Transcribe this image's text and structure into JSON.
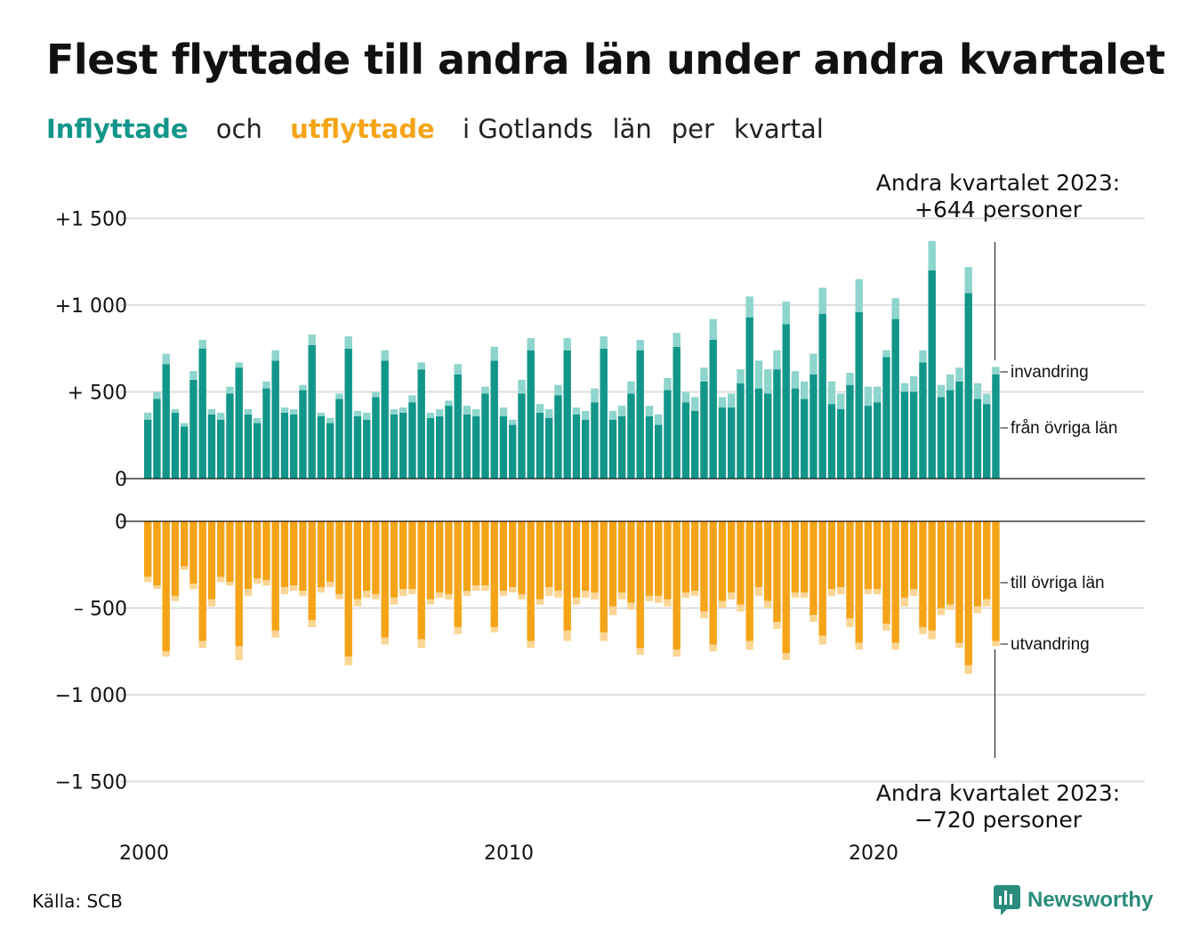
{
  "title": "Flest flyttade till andra län under andra kvartalet",
  "subtitle": {
    "in_word": "Inflyttade",
    "and_word": "och",
    "out_word": "utflyttade",
    "rest": [
      "i Gotlands",
      "län",
      "per",
      "kvartal"
    ]
  },
  "source": "Källa: SCB",
  "brand": "Newsworthy",
  "colors": {
    "in_domestic": "#12968a",
    "in_immigration": "#8dd5cd",
    "out_domestic": "#f5a418",
    "out_emigration": "#fbd593",
    "grid": "#dddddd",
    "axis": "#111111",
    "brand": "#2a8c7c"
  },
  "chart_data": {
    "type": "bar",
    "stacked": true,
    "x_start": "2000 Q1",
    "x_ticks": [
      "2000",
      "2010",
      "2020"
    ],
    "upper": {
      "y_ticks": [
        {
          "value": 0,
          "label": "0"
        },
        {
          "value": 500,
          "label": "+  500"
        },
        {
          "value": 1000,
          "label": "+1 000"
        },
        {
          "value": 1500,
          "label": "+1 500"
        }
      ],
      "ylim": [
        0,
        1500
      ],
      "series": [
        {
          "name": "från övriga län",
          "values": [
            340,
            460,
            660,
            380,
            300,
            570,
            750,
            370,
            340,
            490,
            640,
            370,
            320,
            520,
            680,
            380,
            370,
            510,
            770,
            360,
            320,
            460,
            750,
            360,
            340,
            470,
            680,
            370,
            380,
            440,
            630,
            350,
            360,
            420,
            600,
            370,
            360,
            490,
            680,
            360,
            310,
            490,
            740,
            380,
            350,
            480,
            740,
            370,
            340,
            440,
            750,
            340,
            360,
            490,
            740,
            360,
            310,
            510,
            760,
            440,
            390,
            560,
            800,
            410,
            410,
            550,
            930,
            520,
            490,
            630,
            890,
            520,
            460,
            600,
            950,
            430,
            400,
            540,
            960,
            420,
            440,
            700,
            920,
            500,
            500,
            670,
            1200,
            470,
            510,
            560,
            1070,
            460,
            430,
            600
          ]
        },
        {
          "name": "invandring",
          "values": [
            40,
            40,
            60,
            20,
            20,
            50,
            50,
            30,
            40,
            40,
            30,
            30,
            30,
            40,
            60,
            30,
            30,
            30,
            60,
            20,
            30,
            30,
            70,
            30,
            40,
            30,
            60,
            30,
            30,
            40,
            40,
            30,
            40,
            30,
            60,
            50,
            40,
            40,
            80,
            50,
            30,
            80,
            70,
            50,
            50,
            60,
            70,
            40,
            50,
            80,
            70,
            50,
            60,
            70,
            60,
            60,
            60,
            70,
            80,
            60,
            80,
            80,
            120,
            60,
            80,
            80,
            120,
            160,
            140,
            110,
            130,
            100,
            100,
            120,
            150,
            130,
            90,
            70,
            190,
            110,
            90,
            40,
            120,
            50,
            90,
            70,
            170,
            70,
            90,
            80,
            150,
            90,
            60,
            44
          ]
        }
      ]
    },
    "lower": {
      "y_ticks": [
        {
          "value": 0,
          "label": "0"
        },
        {
          "value": -500,
          "label": "–  500"
        },
        {
          "value": -1000,
          "label": "−1 000"
        },
        {
          "value": -1500,
          "label": "−1 500"
        }
      ],
      "ylim": [
        -1500,
        0
      ],
      "series": [
        {
          "name": "till övriga län",
          "values": [
            -320,
            -370,
            -750,
            -430,
            -260,
            -360,
            -690,
            -450,
            -320,
            -350,
            -720,
            -390,
            -330,
            -340,
            -630,
            -380,
            -370,
            -400,
            -570,
            -380,
            -350,
            -420,
            -780,
            -450,
            -400,
            -420,
            -670,
            -440,
            -390,
            -390,
            -680,
            -450,
            -410,
            -420,
            -610,
            -400,
            -370,
            -370,
            -610,
            -400,
            -380,
            -420,
            -690,
            -450,
            -380,
            -400,
            -630,
            -440,
            -400,
            -410,
            -640,
            -490,
            -410,
            -470,
            -730,
            -430,
            -430,
            -450,
            -740,
            -410,
            -400,
            -520,
            -710,
            -460,
            -410,
            -480,
            -690,
            -380,
            -460,
            -580,
            -760,
            -410,
            -410,
            -540,
            -660,
            -390,
            -380,
            -560,
            -700,
            -390,
            -390,
            -590,
            -700,
            -440,
            -390,
            -610,
            -630,
            -500,
            -480,
            -700,
            -830,
            -490,
            -450,
            -690
          ]
        },
        {
          "name": "utvandring",
          "values": [
            -30,
            -20,
            -30,
            -30,
            -20,
            -30,
            -40,
            -40,
            -30,
            -20,
            -80,
            -40,
            -30,
            -30,
            -40,
            -40,
            -30,
            -30,
            -40,
            -30,
            -30,
            -30,
            -50,
            -40,
            -40,
            -30,
            -40,
            -40,
            -40,
            -30,
            -50,
            -30,
            -30,
            -30,
            -40,
            -30,
            -30,
            -30,
            -30,
            -30,
            -30,
            -30,
            -40,
            -30,
            -50,
            -40,
            -60,
            -40,
            -40,
            -40,
            -50,
            -50,
            -40,
            -40,
            -40,
            -30,
            -40,
            -40,
            -40,
            -30,
            -30,
            -40,
            -40,
            -40,
            -40,
            -40,
            -50,
            -50,
            -40,
            -40,
            -40,
            -30,
            -30,
            -40,
            -50,
            -40,
            -40,
            -50,
            -40,
            -30,
            -30,
            -40,
            -40,
            -50,
            -40,
            -40,
            -50,
            -40,
            -30,
            -30,
            -50,
            -40,
            -40,
            -30
          ]
        }
      ]
    },
    "annotations": {
      "top_heading": "Andra kvartalet 2023:",
      "top_value": "+644 personer",
      "bottom_heading": "Andra kvartalet 2023:",
      "bottom_value": "−720 personer",
      "label_in_imm": "invandring",
      "label_in_dom": "från övriga län",
      "label_out_dom": "till övriga län",
      "label_out_emi": "utvandring"
    }
  }
}
